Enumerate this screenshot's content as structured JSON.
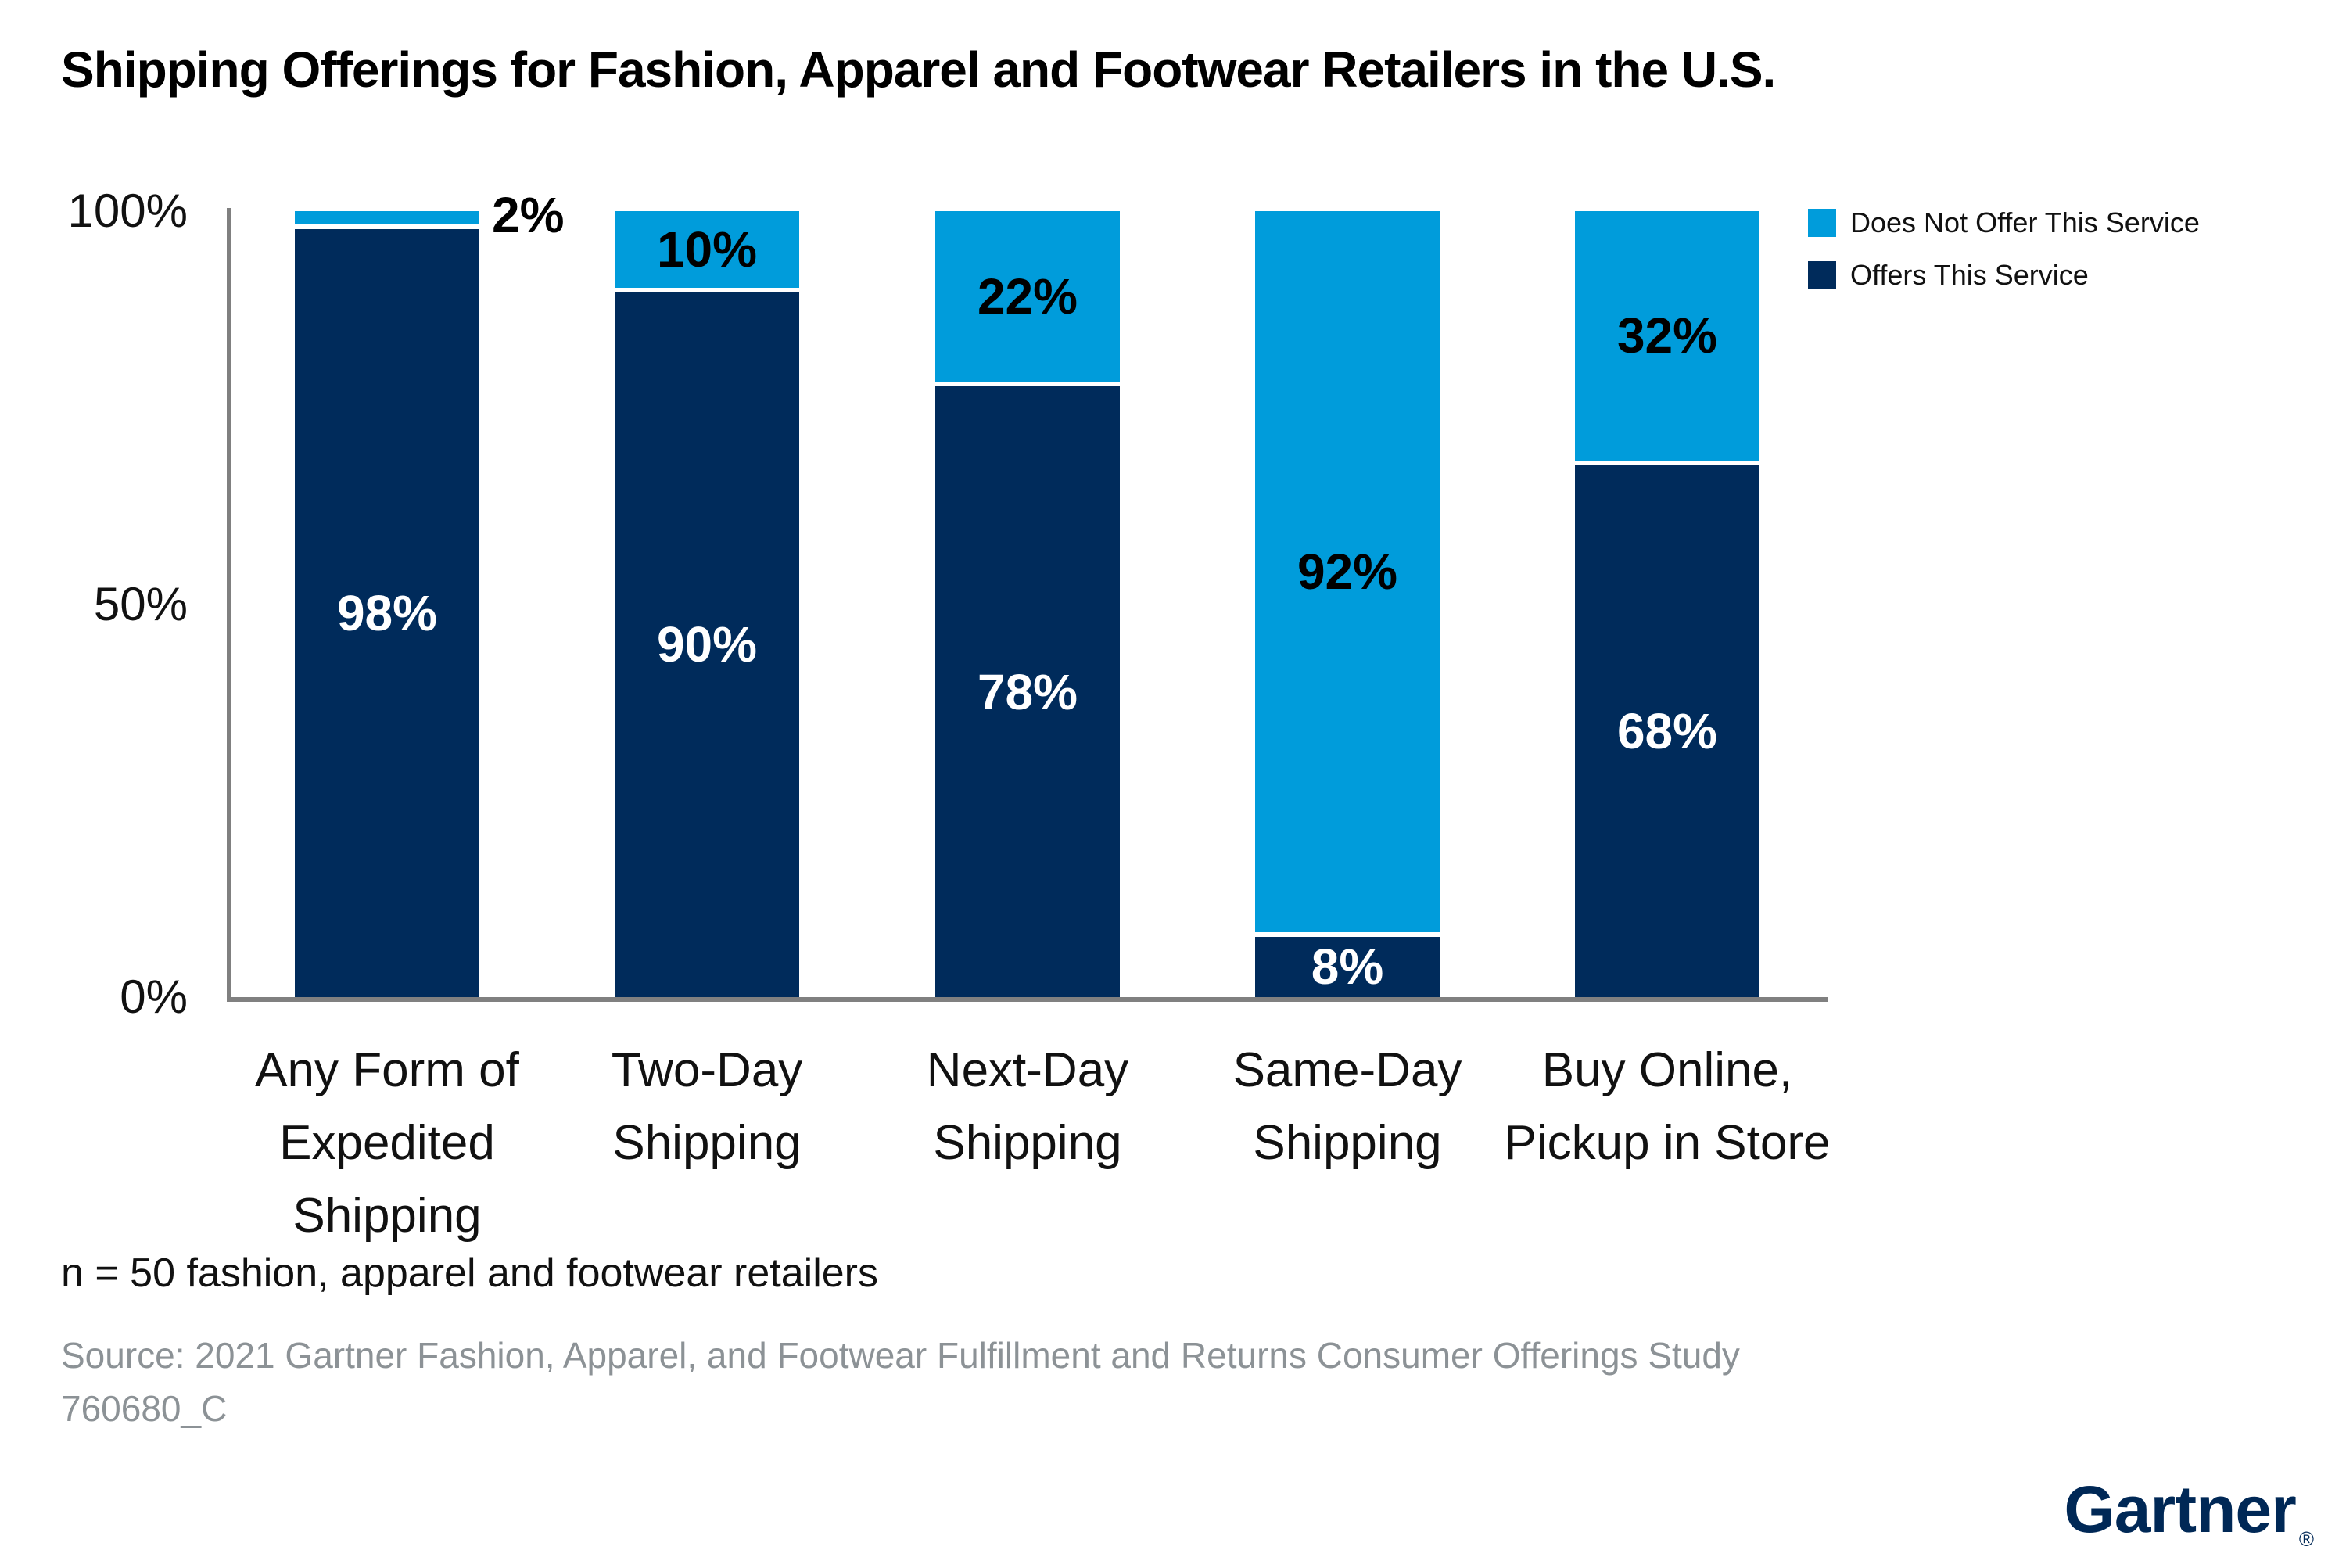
{
  "title": "Shipping Offerings for Fashion, Apparel and Footwear Retailers in the U.S.",
  "colors": {
    "does_not_offer": "#009CDB",
    "offers": "#002B5B",
    "axis_gray": "#808080",
    "footnote_gray": "#8C9296",
    "logo_navy": "#002856",
    "label_dark": "#111111",
    "background": "#FFFFFF"
  },
  "legend": {
    "position": "top-right",
    "entries": [
      {
        "label": "Does Not Offer This Service",
        "color": "#009CDB"
      },
      {
        "label": "Offers This Service",
        "color": "#002B5B"
      }
    ]
  },
  "chart_data": {
    "type": "bar",
    "stacked": true,
    "title": "Shipping Offerings for Fashion, Apparel and Footwear Retailers in the U.S.",
    "categories": [
      "Any Form of\nExpedited\nShipping",
      "Two-Day\nShipping",
      "Next-Day\nShipping",
      "Same-Day\nShipping",
      "Buy Online,\nPickup in Store"
    ],
    "series": [
      {
        "name": "Does Not Offer This Service",
        "values": [
          2,
          10,
          22,
          92,
          32
        ],
        "color": "#009CDB",
        "label_color": "#000000"
      },
      {
        "name": "Offers This Service",
        "values": [
          98,
          90,
          78,
          8,
          68
        ],
        "color": "#002B5B",
        "label_color": "#FFFFFF"
      }
    ],
    "value_suffix": "%",
    "ylim": [
      0,
      100
    ],
    "y_ticks": [
      {
        "label": "100%",
        "value": 100
      },
      {
        "label": "50%",
        "value": 50
      },
      {
        "label": "0%",
        "value": 0
      }
    ],
    "grid": false,
    "legend_position": "top-right"
  },
  "footnotes": {
    "n_line": "n = 50 fashion, apparel and footwear retailers",
    "source": "Source: 2021 Gartner Fashion, Apparel, and Footwear Fulfillment and Returns Consumer Offerings Study",
    "code": "760680_C"
  },
  "brand": {
    "logo_text": "Gartner",
    "registered_mark": "®"
  }
}
